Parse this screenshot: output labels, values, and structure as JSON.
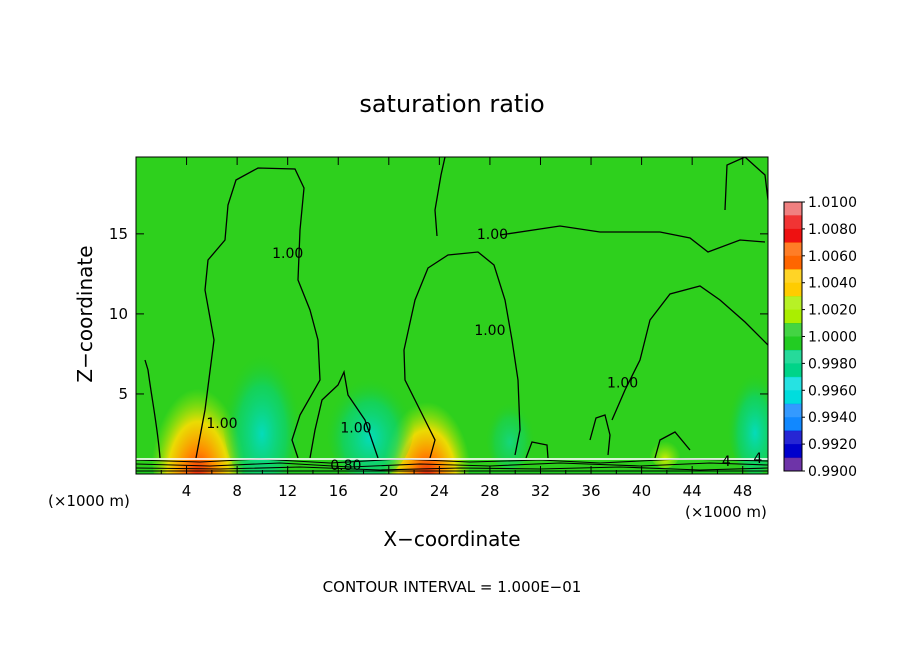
{
  "chart_data": {
    "type": "heatmap",
    "title": "saturation ratio",
    "xlabel": "X−coordinate",
    "ylabel": "Z−coordinate",
    "x_unit": "(×1000 m)",
    "x_unit_right": "(×1000 m)",
    "xlim": [
      0,
      50
    ],
    "ylim": [
      0,
      19.8
    ],
    "xticks": [
      "4",
      "8",
      "12",
      "16",
      "20",
      "24",
      "28",
      "32",
      "36",
      "40",
      "44",
      "48"
    ],
    "yticks": [
      "5",
      "10",
      "15"
    ],
    "footer": "CONTOUR INTERVAL = 1.000E−01",
    "contour_labels": [
      {
        "text": "1.00",
        "x": 12.0,
        "y": 13.8
      },
      {
        "text": "1.00",
        "x": 28.2,
        "y": 15.0
      },
      {
        "text": "1.00",
        "x": 28.0,
        "y": 9.0
      },
      {
        "text": "1.00",
        "x": 38.5,
        "y": 5.7
      },
      {
        "text": "1.00",
        "x": 6.8,
        "y": 3.2
      },
      {
        "text": "1.00",
        "x": 17.4,
        "y": 2.9
      },
      {
        "text": "0.80",
        "x": 16.6,
        "y": 0.55
      },
      {
        "text": "4",
        "x": 49.2,
        "y": 1.0
      },
      {
        "text": "4",
        "x": 46.7,
        "y": 0.8
      }
    ],
    "colorbar": {
      "levels": [
        "1.0100",
        "1.0080",
        "1.0060",
        "1.0040",
        "1.0020",
        "1.0000",
        "0.9980",
        "0.9960",
        "0.9940",
        "0.9920",
        "0.9900"
      ],
      "colors": [
        "#f08080",
        "#ee1111",
        "#ff6600",
        "#ffcc00",
        "#aaee00",
        "#22cc22",
        "#00d488",
        "#00dddd",
        "#1188ff",
        "#0000cc",
        "#551199"
      ]
    }
  }
}
